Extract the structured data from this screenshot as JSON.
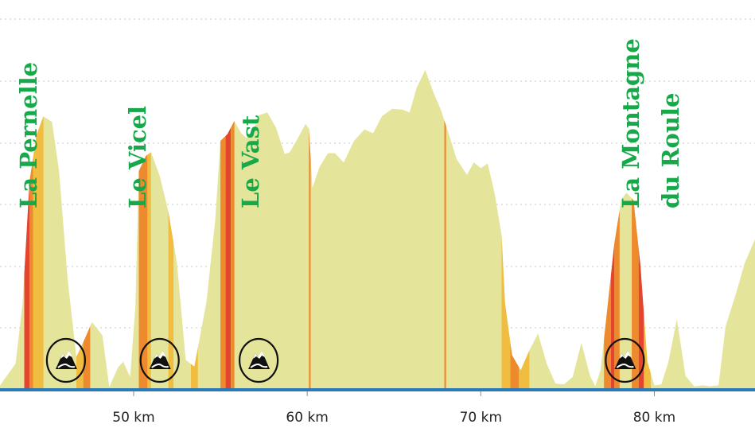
{
  "chart_data": {
    "type": "area",
    "title": "",
    "xlabel": "",
    "ylabel": "",
    "x_unit": "km",
    "xlim": [
      42.3,
      85.8
    ],
    "x_ticks": [
      {
        "value": 50,
        "label": "50 km"
      },
      {
        "value": 60,
        "label": "60 km"
      },
      {
        "value": 70,
        "label": "70 km"
      },
      {
        "value": 80,
        "label": "80 km"
      }
    ],
    "grid": "horizontal-dotted",
    "fill_color": "#e4e59a",
    "baseline_color": "#2a79b9",
    "profile": {
      "km": [
        42.3,
        43.2,
        43.6,
        44.0,
        44.4,
        44.8,
        45.3,
        45.7,
        46.2,
        46.7,
        47.2,
        47.6,
        48.2,
        48.6,
        49.1,
        49.4,
        49.8,
        50.1,
        50.3,
        50.7,
        51.0,
        51.5,
        52.0,
        52.5,
        53.0,
        53.5,
        54.2,
        54.7,
        55.0,
        55.4,
        55.8,
        56.2,
        56.5,
        56.9,
        57.2,
        57.7,
        58.2,
        58.7,
        59.0,
        59.5,
        59.9,
        60.1,
        60.3,
        60.7,
        61.2,
        61.6,
        62.1,
        62.7,
        63.3,
        63.8,
        64.3,
        64.9,
        65.5,
        65.9,
        66.3,
        66.8,
        67.3,
        67.7,
        68.2,
        68.6,
        69.2,
        69.6,
        70.0,
        70.4,
        70.8,
        71.2,
        71.4,
        71.8,
        72.3,
        72.8,
        73.3,
        73.8,
        74.3,
        74.8,
        75.3,
        75.8,
        76.3,
        76.6,
        76.9,
        77.2,
        77.7,
        78.1,
        78.4,
        78.8,
        79.2,
        79.6,
        80.0,
        80.4,
        80.8,
        81.3,
        81.8,
        82.3,
        82.8,
        83.2,
        83.7,
        84.1,
        84.7,
        85.2,
        85.8
      ],
      "elev": [
        3,
        26,
        90,
        219,
        268,
        288,
        282,
        230,
        115,
        33,
        53,
        70,
        56,
        1,
        22,
        28,
        12,
        87,
        230,
        246,
        250,
        225,
        187,
        132,
        30,
        23,
        92,
        178,
        262,
        269,
        283,
        270,
        265,
        272,
        289,
        292,
        276,
        248,
        250,
        266,
        280,
        275,
        212,
        234,
        249,
        249,
        239,
        262,
        274,
        270,
        288,
        296,
        295,
        292,
        318,
        337,
        312,
        295,
        267,
        243,
        226,
        239,
        233,
        238,
        206,
        162,
        90,
        35,
        19,
        40,
        58,
        26,
        5,
        4,
        12,
        48,
        13,
        2,
        19,
        69,
        154,
        200,
        207,
        199,
        130,
        28,
        3,
        4,
        27,
        73,
        13,
        2,
        3,
        2,
        3,
        65,
        100,
        132,
        158
      ]
    },
    "climbs": [
      {
        "name": "La Pernelle",
        "km": 46.1
      },
      {
        "name": "Le Vicel",
        "km": 51.5
      },
      {
        "name": "Le Vast",
        "km": 57.2
      },
      {
        "name": "La Montagne du Roule",
        "km": 78.3
      }
    ],
    "gradient_bands": [
      {
        "from": 43.7,
        "to": 44.0,
        "level": "hard",
        "color": "#e3452e"
      },
      {
        "from": 44.0,
        "to": 44.2,
        "level": "steep",
        "color": "#ed8a2e"
      },
      {
        "from": 44.2,
        "to": 44.8,
        "level": "moderate",
        "color": "#f0bd40"
      },
      {
        "from": 46.7,
        "to": 47.1,
        "level": "moderate",
        "color": "#f0bd40"
      },
      {
        "from": 47.1,
        "to": 47.5,
        "level": "steep",
        "color": "#ed8a2e"
      },
      {
        "from": 50.3,
        "to": 50.8,
        "level": "steep",
        "color": "#ed8a2e"
      },
      {
        "from": 50.8,
        "to": 51.0,
        "level": "moderate",
        "color": "#f0bd40"
      },
      {
        "from": 52.0,
        "to": 52.3,
        "level": "moderate",
        "color": "#f0bd40"
      },
      {
        "from": 53.3,
        "to": 53.7,
        "level": "moderate",
        "color": "#f0bd40"
      },
      {
        "from": 55.0,
        "to": 55.3,
        "level": "steep",
        "color": "#ed8a2e"
      },
      {
        "from": 55.3,
        "to": 55.6,
        "level": "hard",
        "color": "#e3452e"
      },
      {
        "from": 55.6,
        "to": 55.8,
        "level": "steep",
        "color": "#ed8a2e"
      },
      {
        "from": 60.1,
        "to": 60.2,
        "level": "steep",
        "color": "#ed8a2e"
      },
      {
        "from": 67.9,
        "to": 68.0,
        "level": "steep",
        "color": "#ed8a2e"
      },
      {
        "from": 71.2,
        "to": 71.7,
        "level": "moderate",
        "color": "#f0bd40"
      },
      {
        "from": 71.7,
        "to": 72.2,
        "level": "steep",
        "color": "#ed8a2e"
      },
      {
        "from": 72.2,
        "to": 72.8,
        "level": "moderate",
        "color": "#f0bd40"
      },
      {
        "from": 77.1,
        "to": 77.5,
        "level": "steep",
        "color": "#ed8a2e"
      },
      {
        "from": 77.5,
        "to": 77.7,
        "level": "hard",
        "color": "#e3452e"
      },
      {
        "from": 77.7,
        "to": 78.0,
        "level": "steep",
        "color": "#ed8a2e"
      },
      {
        "from": 78.7,
        "to": 79.1,
        "level": "steep",
        "color": "#ed8a2e"
      },
      {
        "from": 79.1,
        "to": 79.4,
        "level": "hard",
        "color": "#e3452e"
      },
      {
        "from": 79.4,
        "to": 79.8,
        "level": "moderate",
        "color": "#f0bd40"
      }
    ]
  },
  "icons": {
    "climb_marker": "mountain-icon"
  }
}
